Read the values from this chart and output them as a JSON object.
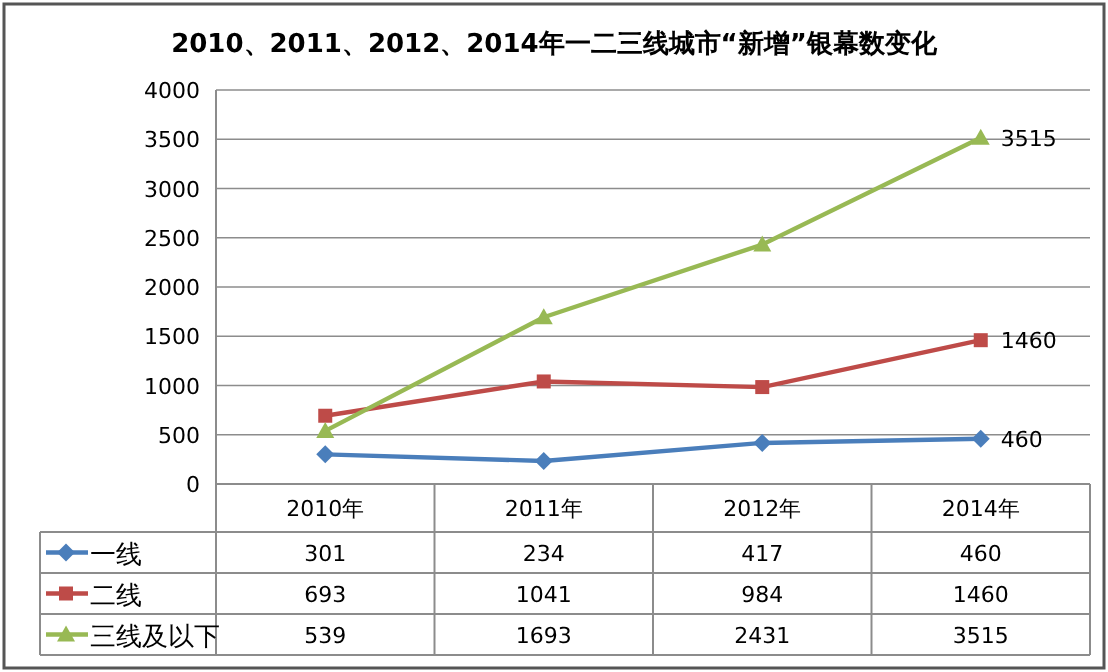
{
  "chart_data": {
    "type": "line",
    "title": "2010、2011、2012、2014年一二三线城市“新增”银幕数变化",
    "categories": [
      "2010年",
      "2011年",
      "2012年",
      "2014年"
    ],
    "series": [
      {
        "name": "一线",
        "color": "#4a7ebb",
        "marker": "diamond",
        "values": [
          301,
          234,
          417,
          460
        ],
        "value_labels": [
          "301",
          "234",
          "417",
          "460"
        ]
      },
      {
        "name": "二线",
        "color": "#be4b48",
        "marker": "square",
        "values": [
          693,
          1041,
          984,
          1460
        ],
        "value_labels": [
          "693",
          "1041",
          "984",
          "1460"
        ]
      },
      {
        "name": "三线及以下",
        "color": "#98b954",
        "marker": "triangle",
        "values": [
          539,
          1693,
          2431,
          3515
        ],
        "value_labels": [
          "539",
          "1693",
          "2431",
          "3515"
        ]
      }
    ],
    "annotations": [
      {
        "text": "460",
        "x": "2014年",
        "y": 460
      },
      {
        "text": "1460",
        "x": "2014年",
        "y": 1460
      },
      {
        "text": "3515",
        "x": "2014年",
        "y": 3515
      }
    ],
    "ylim": [
      0,
      4000
    ],
    "yticks": [
      0,
      500,
      1000,
      1500,
      2000,
      2500,
      3000,
      3500,
      4000
    ],
    "grid": "y",
    "legend": "bottom"
  }
}
